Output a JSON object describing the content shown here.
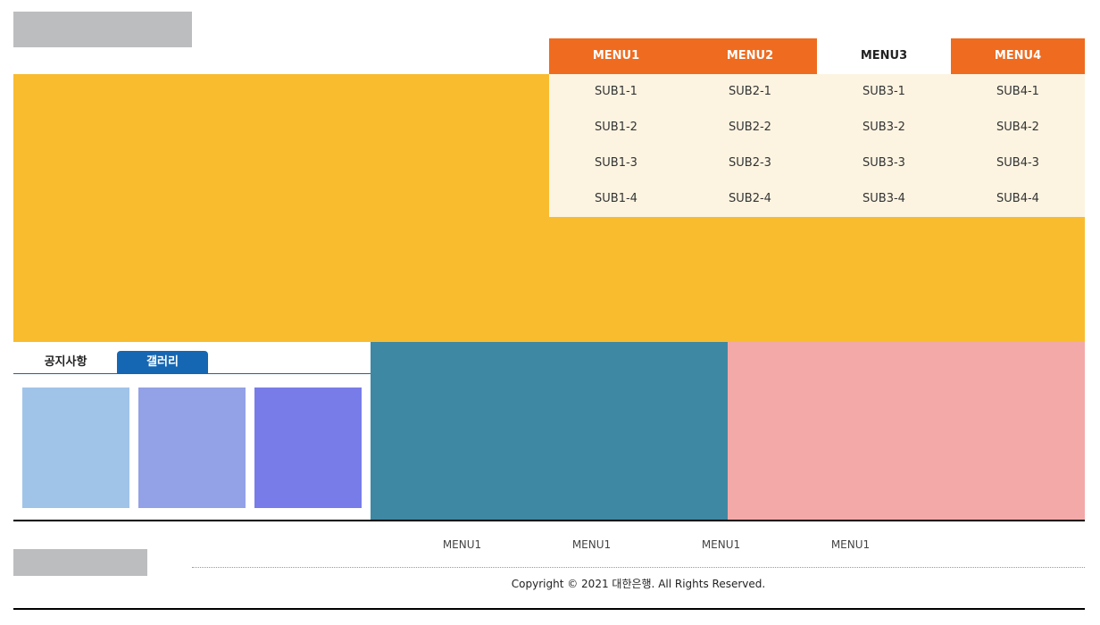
{
  "header": {
    "menus": [
      {
        "label": "MENU1",
        "subs": [
          "SUB1-1",
          "SUB1-2",
          "SUB1-3",
          "SUB1-4"
        ]
      },
      {
        "label": "MENU2",
        "subs": [
          "SUB2-1",
          "SUB2-2",
          "SUB2-3",
          "SUB2-4"
        ]
      },
      {
        "label": "MENU3",
        "subs": [
          "SUB3-1",
          "SUB3-2",
          "SUB3-3",
          "SUB3-4"
        ]
      },
      {
        "label": "MENU4",
        "subs": [
          "SUB4-1",
          "SUB4-2",
          "SUB4-3",
          "SUB4-4"
        ]
      }
    ],
    "active_menu": "MENU3"
  },
  "main": {
    "tabs": [
      {
        "label": "공지사항"
      },
      {
        "label": "갤러리"
      }
    ],
    "active_tab": "갤러리",
    "gallery": [
      {
        "color": "#a0c4e8"
      },
      {
        "color": "#93a1e6"
      },
      {
        "color": "#787ce8"
      }
    ]
  },
  "footer": {
    "links": [
      "MENU1",
      "MENU1",
      "MENU1",
      "MENU1"
    ],
    "copyright": "Copyright © 2021 대한은행. All Rights Reserved."
  },
  "colors": {
    "menu_orange": "#ef6b1f",
    "submenu_bg": "#fcf4e1",
    "hero_yellow": "#f9bc2f",
    "tab_blue": "#1567b3",
    "banner_teal": "#3f88a3",
    "banner_pink": "#f4a9a9",
    "placeholder_gray": "#bcbdbf"
  }
}
